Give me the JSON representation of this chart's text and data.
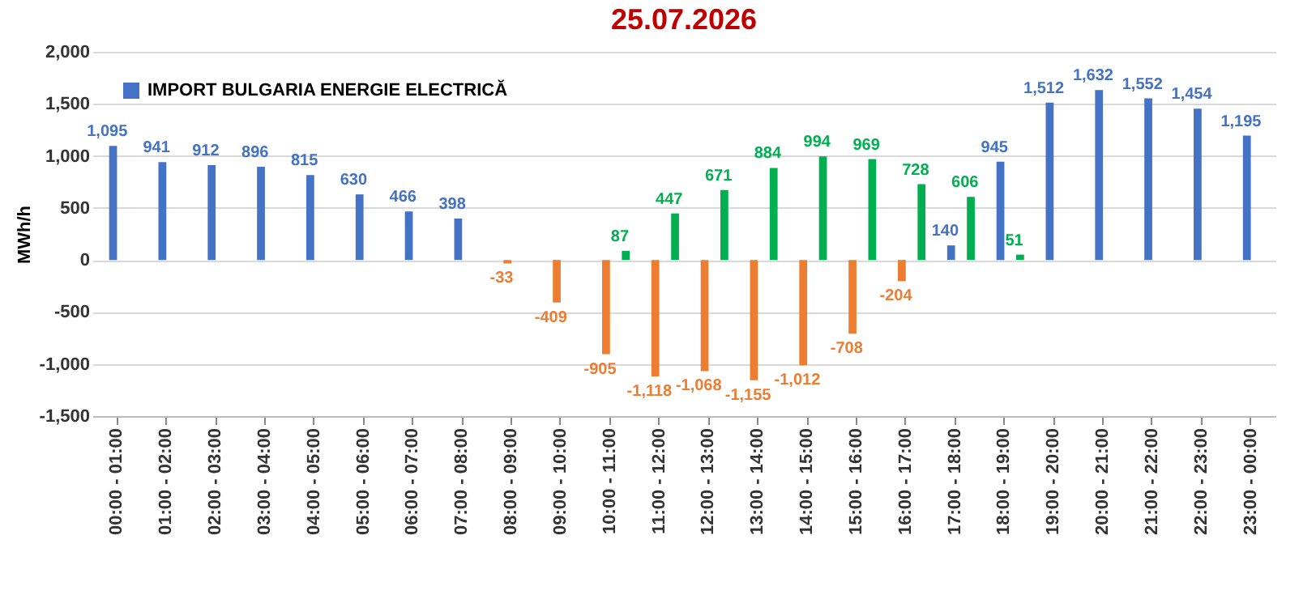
{
  "chart_data": {
    "type": "bar",
    "title": "25.07.2026",
    "ylabel": "MWh/h",
    "categories": [
      "00:00 - 01:00",
      "01:00 - 02:00",
      "02:00 - 03:00",
      "03:00 - 04:00",
      "04:00 - 05:00",
      "05:00 - 06:00",
      "06:00 - 07:00",
      "07:00 - 08:00",
      "08:00 - 09:00",
      "09:00 - 10:00",
      "10:00 - 11:00",
      "11:00 - 12:00",
      "12:00 - 13:00",
      "13:00 - 14:00",
      "14:00 - 15:00",
      "15:00 - 16:00",
      "16:00 - 17:00",
      "17:00 - 18:00",
      "18:00 - 19:00",
      "19:00 - 20:00",
      "20:00 - 21:00",
      "21:00 - 22:00",
      "22:00 - 23:00",
      "23:00 - 00:00"
    ],
    "series": [
      {
        "name": "IMPORT BULGARIA ENERGIE ELECTRICĂ",
        "color": "#4472c4",
        "values": [
          1095,
          941,
          912,
          896,
          815,
          630,
          466,
          398,
          null,
          null,
          null,
          null,
          null,
          null,
          null,
          null,
          null,
          140,
          945,
          1512,
          1632,
          1552,
          1454,
          1195
        ],
        "value_labels": [
          "1,095",
          "941",
          "912",
          "896",
          "815",
          "630",
          "466",
          "398",
          null,
          null,
          null,
          null,
          null,
          null,
          null,
          null,
          null,
          "140",
          "945",
          "1,512",
          "1,632",
          "1,552",
          "1,454",
          "1,195"
        ]
      },
      {
        "color": "#ed7d31",
        "values": [
          null,
          null,
          null,
          null,
          null,
          null,
          null,
          null,
          -33,
          -409,
          -905,
          -1118,
          -1068,
          -1155,
          -1012,
          -708,
          -204,
          null,
          null,
          null,
          null,
          null,
          null,
          null
        ],
        "value_labels": [
          null,
          null,
          null,
          null,
          null,
          null,
          null,
          null,
          "-33",
          "-409",
          "-905",
          "-1,118",
          "-1,068",
          "-1,155",
          "-1,012",
          "-708",
          "-204",
          null,
          null,
          null,
          null,
          null,
          null,
          null
        ]
      },
      {
        "color": "#00b050",
        "values": [
          null,
          null,
          null,
          null,
          null,
          null,
          null,
          null,
          null,
          null,
          87,
          447,
          671,
          884,
          994,
          969,
          728,
          606,
          51,
          null,
          null,
          null,
          null,
          null
        ],
        "value_labels": [
          null,
          null,
          null,
          null,
          null,
          null,
          null,
          null,
          null,
          null,
          "87",
          "447",
          "671",
          "884",
          "994",
          "969",
          "728",
          "606",
          "51",
          null,
          null,
          null,
          null,
          null
        ]
      }
    ],
    "ylim": [
      -1500,
      2000
    ],
    "yticks": [
      {
        "value": -1500,
        "label": "-1,500"
      },
      {
        "value": -1000,
        "label": "-1,000"
      },
      {
        "value": -500,
        "label": "-500"
      },
      {
        "value": 0,
        "label": "0"
      },
      {
        "value": 500,
        "label": "500"
      },
      {
        "value": 1000,
        "label": "1,000"
      },
      {
        "value": 1500,
        "label": "1,500"
      },
      {
        "value": 2000,
        "label": "2,000"
      }
    ],
    "grid": "y",
    "legend": "top left"
  }
}
